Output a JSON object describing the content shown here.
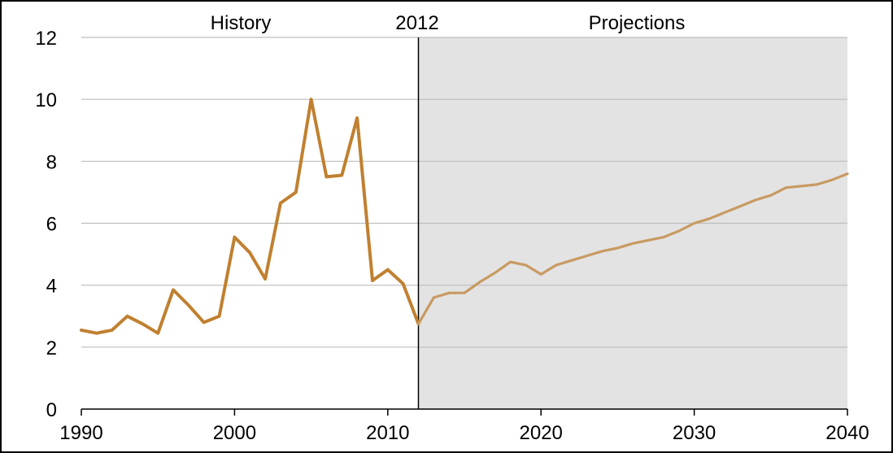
{
  "chart_data": {
    "type": "line",
    "xlim": [
      1990,
      2040
    ],
    "ylim": [
      0,
      12
    ],
    "grid": true,
    "x_ticks": [
      "1990",
      "2000",
      "2010",
      "2020",
      "2030",
      "2040"
    ],
    "y_ticks": [
      "0",
      "2",
      "4",
      "6",
      "8",
      "10",
      "12"
    ],
    "annotations": {
      "history": "History",
      "divider": "2012",
      "projections": "Projections"
    },
    "divider_x": 2012,
    "projection_shade": "#e3e3e3",
    "colors": {
      "history": "#c08030",
      "projection": "#c89a62",
      "grid": "#bdbdbd",
      "axis": "#000000"
    },
    "series": [
      {
        "segment": "history",
        "x": [
          1990,
          1991,
          1992,
          1993,
          1994,
          1995,
          1996,
          1997,
          1998,
          1999,
          2000,
          2001,
          2002,
          2003,
          2004,
          2005,
          2006,
          2007,
          2008,
          2009,
          2010,
          2011,
          2012
        ],
        "y": [
          2.55,
          2.45,
          2.55,
          3.0,
          2.75,
          2.45,
          3.85,
          3.35,
          2.8,
          3.0,
          5.55,
          5.05,
          4.2,
          6.65,
          7.0,
          10.0,
          7.5,
          7.55,
          9.4,
          4.15,
          4.5,
          4.05,
          2.75
        ]
      },
      {
        "segment": "projection",
        "x": [
          2012,
          2013,
          2014,
          2015,
          2016,
          2017,
          2018,
          2019,
          2020,
          2021,
          2022,
          2023,
          2024,
          2025,
          2026,
          2027,
          2028,
          2029,
          2030,
          2031,
          2032,
          2033,
          2034,
          2035,
          2036,
          2037,
          2038,
          2039,
          2040
        ],
        "y": [
          2.75,
          3.6,
          3.75,
          3.75,
          4.1,
          4.4,
          4.75,
          4.65,
          4.35,
          4.65,
          4.8,
          4.95,
          5.1,
          5.2,
          5.35,
          5.45,
          5.55,
          5.75,
          6.0,
          6.15,
          6.35,
          6.55,
          6.75,
          6.9,
          7.15,
          7.2,
          7.25,
          7.4,
          7.6
        ]
      }
    ]
  }
}
